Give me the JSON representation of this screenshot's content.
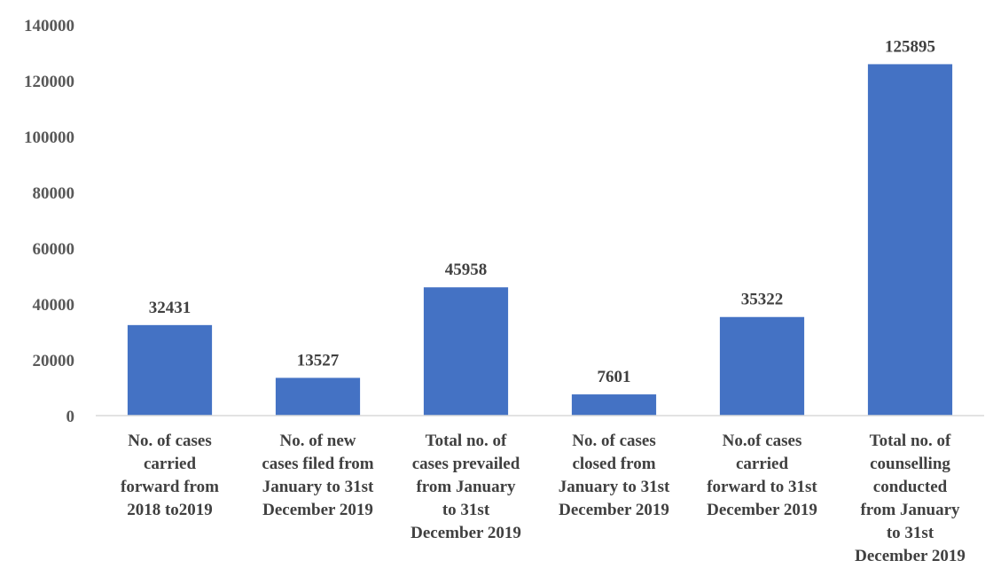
{
  "chart_data": {
    "type": "bar",
    "title": "",
    "xlabel": "",
    "ylabel": "",
    "categories": [
      "No. of cases carried forward from 2018 to2019",
      "No. of new cases filed from January to 31st December 2019",
      "Total no. of cases prevailed from January to 31st December 2019",
      "No. of cases closed from January to 31st December 2019",
      "No.of cases carried forward to 31st December 2019",
      "Total no. of counselling conducted from January to 31st December 2019"
    ],
    "category_lines": [
      [
        "No. of cases",
        "carried",
        "forward from",
        "2018 to2019"
      ],
      [
        "No. of new",
        "cases filed from",
        "January to 31st",
        "December 2019"
      ],
      [
        "Total no. of",
        "cases prevailed",
        "from January",
        "to 31st",
        "December 2019"
      ],
      [
        "No. of cases",
        "closed from",
        "January to 31st",
        "December 2019"
      ],
      [
        "No.of cases",
        "carried",
        "forward to 31st",
        "December 2019"
      ],
      [
        "Total no. of",
        "counselling",
        "conducted",
        "from January",
        "to 31st",
        "December 2019"
      ]
    ],
    "values": [
      32431,
      13527,
      45958,
      7601,
      35322,
      125895
    ],
    "data_labels": [
      "32431",
      "13527",
      "45958",
      "7601",
      "35322",
      "125895"
    ],
    "ylim": [
      0,
      140000
    ],
    "yticks": [
      0,
      20000,
      40000,
      60000,
      80000,
      100000,
      120000,
      140000
    ],
    "ytick_labels": [
      "0",
      "20000",
      "40000",
      "60000",
      "80000",
      "100000",
      "120000",
      "140000"
    ],
    "bar_color": "#4472C4",
    "grid": false,
    "legend": "none"
  }
}
